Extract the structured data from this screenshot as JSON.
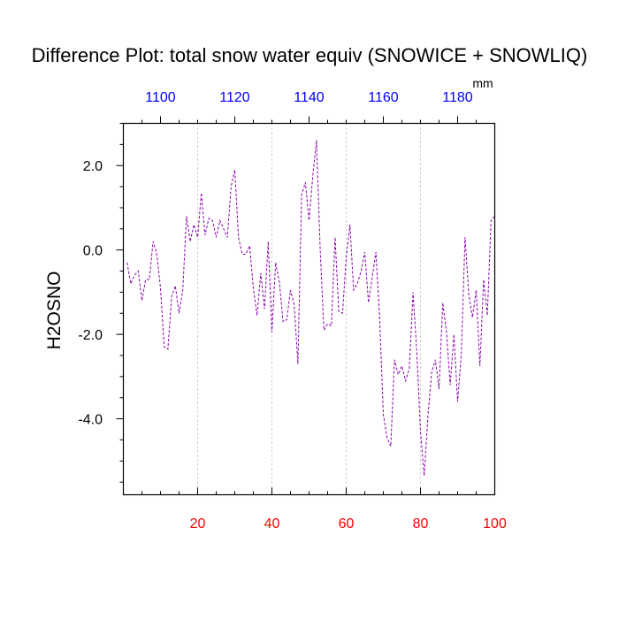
{
  "chart_data": {
    "type": "line",
    "title": "Difference Plot: total snow water equiv (SNOWICE + SNOWLIQ)",
    "ylabel": "H2OSNO",
    "top_axis_units": "mm",
    "xlim": [
      0,
      100
    ],
    "ylim": [
      -5.8,
      3.0
    ],
    "x_ticks": [
      20,
      40,
      60,
      80,
      100
    ],
    "x_tick_labels": [
      "20",
      "40",
      "60",
      "80",
      "100"
    ],
    "x_tick_color": "#ff0000",
    "x_minor_step": 5,
    "top_ticks": [
      1100,
      1120,
      1140,
      1160,
      1180
    ],
    "top_tick_labels": [
      "1100",
      "1120",
      "1140",
      "1160",
      "1180"
    ],
    "top_tick_color": "#0000ff",
    "top_axis_offset": 1090,
    "top_minor_step": 5,
    "y_ticks": [
      -4.0,
      -2.0,
      0.0,
      2.0
    ],
    "y_tick_labels": [
      "-4.0",
      "-2.0",
      "0.0",
      "2.0"
    ],
    "y_minor_step": 0.5,
    "grid": "vertical dashed at major x ticks",
    "series": [
      {
        "name": "H2OSNO difference",
        "color": "#8800aa",
        "style": "dashed",
        "x": [
          1,
          2,
          3,
          4,
          5,
          6,
          7,
          8,
          9,
          10,
          11,
          12,
          13,
          14,
          15,
          16,
          17,
          18,
          19,
          20,
          21,
          22,
          23,
          24,
          25,
          26,
          27,
          28,
          29,
          30,
          31,
          32,
          33,
          34,
          35,
          36,
          37,
          38,
          39,
          40,
          41,
          42,
          43,
          44,
          45,
          46,
          47,
          48,
          49,
          50,
          51,
          52,
          53,
          54,
          55,
          56,
          57,
          58,
          59,
          60,
          61,
          62,
          63,
          64,
          65,
          66,
          67,
          68,
          69,
          70,
          71,
          72,
          73,
          74,
          75,
          76,
          77,
          78,
          79,
          80,
          81,
          82,
          83,
          84,
          85,
          86,
          87,
          88,
          89,
          90,
          91,
          92,
          93,
          94,
          95,
          96,
          97,
          98,
          99,
          100
        ],
        "values": [
          -0.3,
          -0.8,
          -0.6,
          -0.5,
          -1.2,
          -0.7,
          -0.7,
          0.2,
          -0.1,
          -0.9,
          -2.3,
          -2.35,
          -1.1,
          -0.85,
          -1.5,
          -0.95,
          0.8,
          0.2,
          0.6,
          0.3,
          1.35,
          0.35,
          0.75,
          0.7,
          0.3,
          0.7,
          0.5,
          0.3,
          1.5,
          1.9,
          0.3,
          -0.1,
          -0.1,
          0.1,
          -0.9,
          -1.55,
          -0.55,
          -1.4,
          0.2,
          -1.95,
          -0.3,
          -0.75,
          -1.7,
          -1.65,
          -0.95,
          -1.3,
          -2.7,
          1.3,
          1.6,
          0.7,
          1.75,
          2.6,
          0.0,
          -1.9,
          -1.75,
          -1.8,
          0.3,
          -1.45,
          -1.5,
          -0.2,
          0.6,
          -0.95,
          -0.8,
          -0.5,
          -0.05,
          -1.25,
          -0.65,
          -0.05,
          -1.6,
          -3.9,
          -4.45,
          -4.65,
          -2.6,
          -2.95,
          -2.75,
          -3.1,
          -2.8,
          -1.0,
          -2.4,
          -4.3,
          -5.35,
          -3.95,
          -2.9,
          -2.6,
          -3.3,
          -1.25,
          -1.95,
          -3.2,
          -2.0,
          -3.6,
          -2.45,
          0.3,
          -1.05,
          -1.6,
          -0.95,
          -2.75,
          -0.7,
          -1.55,
          0.7,
          0.8
        ]
      }
    ]
  }
}
